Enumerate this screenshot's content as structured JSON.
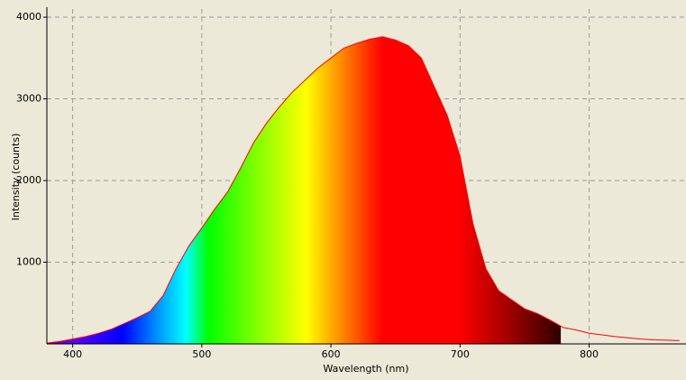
{
  "chart_data": {
    "type": "area",
    "x_label": "Wavelength (nm)",
    "y_label": "Intensity (counts)",
    "x": [
      380,
      390,
      400,
      410,
      420,
      430,
      440,
      450,
      460,
      470,
      480,
      490,
      500,
      510,
      520,
      530,
      540,
      550,
      560,
      570,
      580,
      590,
      600,
      610,
      620,
      630,
      640,
      650,
      660,
      670,
      680,
      690,
      700,
      710,
      720,
      730,
      740,
      750,
      760,
      770,
      780,
      790,
      800,
      810,
      820,
      830,
      840,
      850,
      860,
      870
    ],
    "series": [
      {
        "color": "#ff0000",
        "values": [
          10,
          30,
          60,
          90,
          130,
          180,
          250,
          320,
          400,
          590,
          920,
          1200,
          1420,
          1650,
          1860,
          2150,
          2460,
          2700,
          2900,
          3080,
          3230,
          3380,
          3500,
          3620,
          3680,
          3730,
          3760,
          3720,
          3650,
          3500,
          3150,
          2800,
          2300,
          1470,
          920,
          650,
          540,
          430,
          370,
          290,
          200,
          170,
          130,
          110,
          90,
          75,
          60,
          50,
          45,
          40
        ]
      }
    ],
    "xlim": [
      380,
      875
    ],
    "ylim": [
      0,
      4100
    ],
    "xticks": [
      400,
      500,
      600,
      700,
      800
    ],
    "yticks": [
      1000,
      2000,
      3000,
      4000
    ],
    "grid": true
  }
}
